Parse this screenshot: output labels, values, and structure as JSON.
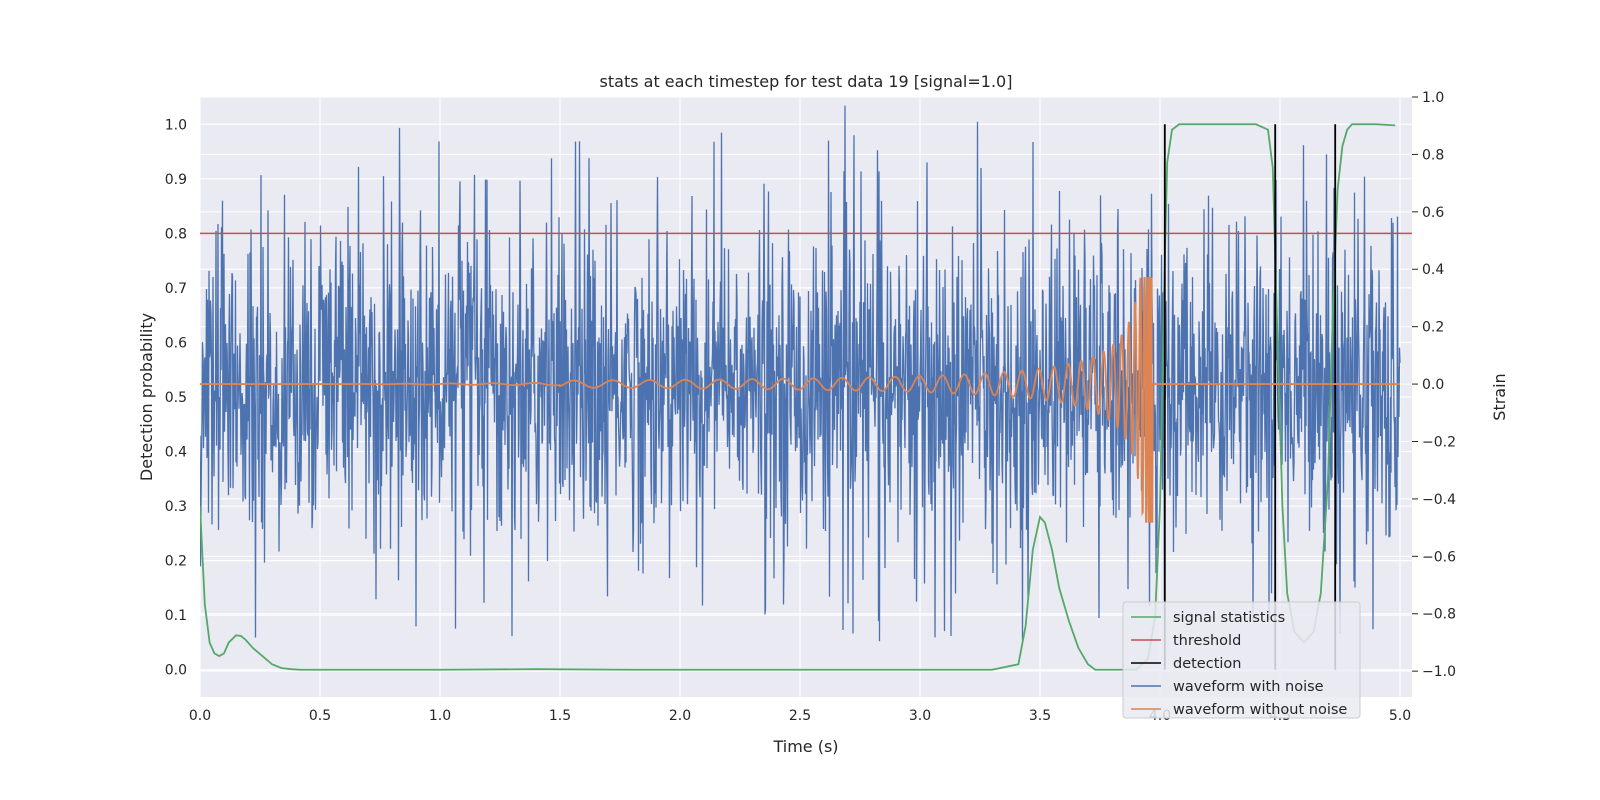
{
  "chart_data": {
    "type": "line",
    "title": "stats at each timestep for test data 19 [signal=1.0]",
    "xlabel": "Time (s)",
    "ylabel": "Detection probability",
    "ylabel_right": "Strain",
    "xlim": [
      0.0,
      5.05
    ],
    "ylim": [
      -0.05,
      1.05
    ],
    "ylim_right": [
      -1.09,
      1.0
    ],
    "x_ticks": [
      "0.0",
      "0.5",
      "1.0",
      "1.5",
      "2.0",
      "2.5",
      "3.0",
      "3.5",
      "4.0",
      "4.5",
      "5.0"
    ],
    "y_ticks": [
      "0.0",
      "0.1",
      "0.2",
      "0.3",
      "0.4",
      "0.5",
      "0.6",
      "0.7",
      "0.8",
      "0.9",
      "1.0"
    ],
    "y_ticks_right": [
      "−1.0",
      "−0.8",
      "−0.6",
      "−0.4",
      "−0.2",
      "0.0",
      "0.2",
      "0.4",
      "0.6",
      "0.8",
      "1.0"
    ],
    "grid": true,
    "legend_position": "lower-right",
    "colors": {
      "background": "#eaeaf2",
      "grid": "#ffffff",
      "signal_statistics": "#55a868",
      "threshold": "#c44e52",
      "detection": "#000000",
      "waveform_with_noise": "#4c72b0",
      "waveform_without_noise": "#dd8452"
    },
    "series": [
      {
        "name": "signal statistics",
        "axis": "left",
        "x": [
          0.0,
          0.02,
          0.04,
          0.06,
          0.08,
          0.1,
          0.12,
          0.15,
          0.17,
          0.19,
          0.22,
          0.26,
          0.3,
          0.34,
          0.38,
          0.42,
          0.6,
          1.0,
          1.4,
          1.8,
          2.2,
          2.6,
          3.0,
          3.3,
          3.41,
          3.44,
          3.47,
          3.5,
          3.52,
          3.55,
          3.58,
          3.62,
          3.66,
          3.7,
          3.73,
          3.76,
          3.8,
          3.9,
          3.95,
          3.98,
          4.0,
          4.02,
          4.03,
          4.05,
          4.08,
          4.15,
          4.3,
          4.4,
          4.45,
          4.47,
          4.49,
          4.51,
          4.53,
          4.56,
          4.6,
          4.64,
          4.67,
          4.7,
          4.72,
          4.74,
          4.76,
          4.78,
          4.8,
          4.85,
          4.9,
          4.98
        ],
        "values": [
          0.3,
          0.12,
          0.05,
          0.03,
          0.025,
          0.03,
          0.05,
          0.063,
          0.062,
          0.055,
          0.04,
          0.025,
          0.01,
          0.003,
          0.001,
          0.0,
          0.0,
          0.0,
          0.001,
          0.0,
          0.0,
          0.0,
          0.0,
          0.0,
          0.01,
          0.08,
          0.22,
          0.28,
          0.27,
          0.22,
          0.15,
          0.09,
          0.04,
          0.01,
          0.0,
          0.0,
          0.0,
          0.0,
          0.02,
          0.1,
          0.3,
          0.75,
          0.93,
          0.99,
          1.0,
          1.0,
          1.0,
          1.0,
          0.99,
          0.92,
          0.6,
          0.3,
          0.14,
          0.07,
          0.05,
          0.07,
          0.14,
          0.35,
          0.65,
          0.88,
          0.96,
          0.99,
          1.0,
          1.0,
          1.0,
          0.998
        ]
      },
      {
        "name": "threshold",
        "axis": "left",
        "value": 0.8
      },
      {
        "name": "detection",
        "axis": "left",
        "x": [
          4.02,
          4.48,
          4.73
        ],
        "range": [
          0.0,
          1.0
        ]
      },
      {
        "name": "waveform with noise",
        "axis": "right",
        "description_of_values": "Gaussian noise around 0.0 strain, typical amplitude about 0.3, peaks reaching roughly -1.0 to 1.0",
        "x_range": [
          0.0,
          5.0
        ],
        "amplitude": 0.3,
        "max_peak": 0.97,
        "min_peak": -1.0
      },
      {
        "name": "waveform without noise",
        "axis": "right",
        "description_of_values": "chirp signal at 0.0 strain until ~1.5 s, growing oscillation reaching about 0.37 / -0.48 strain at 3.96 s, then flat 0.0",
        "x_range": [
          0.0,
          5.0
        ],
        "chirp_start": 1.5,
        "merger_time": 3.97,
        "peak_max": 0.37,
        "peak_min": -0.48
      }
    ]
  }
}
